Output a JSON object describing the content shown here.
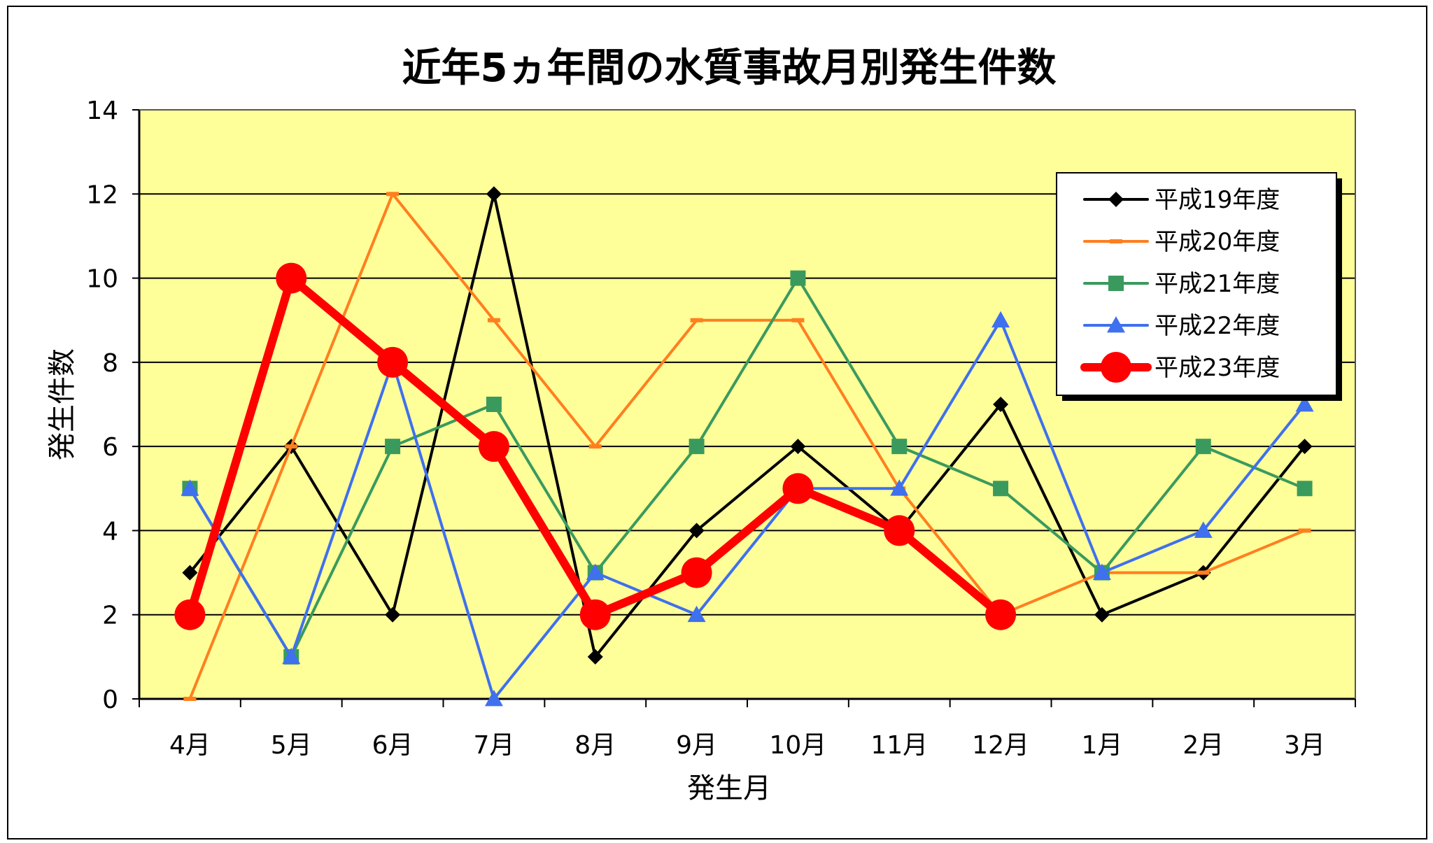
{
  "chart_data": {
    "type": "line",
    "title": "近年5ヵ年間の水質事故月別発生件数",
    "xlabel": "発生月",
    "ylabel": "発生件数",
    "ylim": [
      0,
      14
    ],
    "yticks": [
      "0",
      "2",
      "4",
      "6",
      "8",
      "10",
      "12",
      "14"
    ],
    "categories": [
      "4月",
      "5月",
      "6月",
      "7月",
      "8月",
      "9月",
      "10月",
      "11月",
      "12月",
      "1月",
      "2月",
      "3月"
    ],
    "grid": true,
    "legend_position": "top-right",
    "plot_background": "#ffff99",
    "series": [
      {
        "name": "平成19年度",
        "color": "#000000",
        "marker": "diamond",
        "line_width": "thin",
        "values": [
          3,
          6,
          2,
          12,
          1,
          4,
          6,
          4,
          7,
          2,
          3,
          6
        ]
      },
      {
        "name": "平成20年度",
        "color": "#ff7f1f",
        "marker": "dash",
        "line_width": "thin",
        "values": [
          0,
          6,
          12,
          9,
          6,
          9,
          9,
          5,
          2,
          3,
          3,
          4
        ]
      },
      {
        "name": "平成21年度",
        "color": "#3a9a5e",
        "marker": "square",
        "line_width": "thin",
        "values": [
          5,
          1,
          6,
          7,
          3,
          6,
          10,
          6,
          5,
          3,
          6,
          5
        ]
      },
      {
        "name": "平成22年度",
        "color": "#3f70ee",
        "marker": "triangle",
        "line_width": "thin",
        "values": [
          5,
          1,
          8,
          0,
          3,
          2,
          5,
          5,
          9,
          3,
          4,
          7
        ]
      },
      {
        "name": "平成23年度",
        "color": "#ff0000",
        "marker": "circle",
        "line_width": "thick",
        "values": [
          2,
          10,
          8,
          6,
          2,
          3,
          5,
          4,
          2,
          null,
          null,
          null
        ]
      }
    ]
  }
}
